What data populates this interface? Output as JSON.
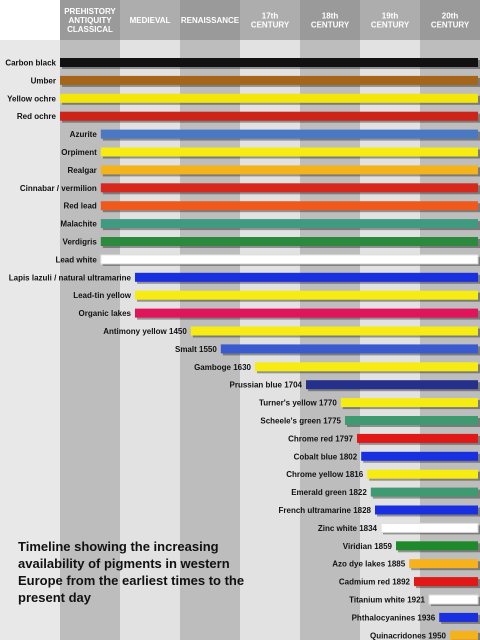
{
  "chart_data": {
    "type": "bar",
    "subtype": "timeline",
    "title": "Timeline showing the increasing availability of pigments in western Europe from the earliest times to the present day",
    "periods": [
      {
        "lines": [
          "PREHISTORY",
          "ANTIQUITY",
          "CLASSICAL"
        ],
        "band": "dark"
      },
      {
        "lines": [
          "MEDIEVAL"
        ],
        "band": "light"
      },
      {
        "lines": [
          "RENAISSANCE"
        ],
        "band": "dark"
      },
      {
        "lines": [
          "17th",
          "CENTURY"
        ],
        "band": "light"
      },
      {
        "lines": [
          "18th",
          "CENTURY"
        ],
        "band": "dark"
      },
      {
        "lines": [
          "19th",
          "CENTURY"
        ],
        "band": "light"
      },
      {
        "lines": [
          "20th",
          "CENTURY"
        ],
        "band": "dark"
      }
    ],
    "timeline_end": 7,
    "note": "start values are in period units: 0 = start of Prehistory/Antiquity/Classical, 1 = start of Medieval, 2 = Renaissance, 3 = 17th century, 4 = 18th, 5 = 19th, 6 = 20th, 7 = present",
    "series": [
      {
        "label": "Carbon black",
        "start": 0.0,
        "color": "#111111"
      },
      {
        "label": "Umber",
        "start": 0.0,
        "color": "#a5661a"
      },
      {
        "label": "Yellow ochre",
        "start": 0.0,
        "color": "#f5e60a"
      },
      {
        "label": "Red ochre",
        "start": 0.0,
        "color": "#cc2418"
      },
      {
        "label": "Azurite",
        "start": 0.68,
        "color": "#4a78c2"
      },
      {
        "label": "Orpiment",
        "start": 0.68,
        "color": "#f7ec12"
      },
      {
        "label": "Realgar",
        "start": 0.68,
        "color": "#f3b31a"
      },
      {
        "label": "Cinnabar / vermilion",
        "start": 0.68,
        "color": "#d6281c"
      },
      {
        "label": "Red lead",
        "start": 0.68,
        "color": "#ef5a1c"
      },
      {
        "label": "Malachite",
        "start": 0.68,
        "color": "#3f9a80"
      },
      {
        "label": "Verdigris",
        "start": 0.68,
        "color": "#2c8a3e"
      },
      {
        "label": "Lead white",
        "start": 0.68,
        "color": "#ffffff"
      },
      {
        "label": "Lapis lazuli / natural ultramarine",
        "start": 1.25,
        "color": "#1a2fe0"
      },
      {
        "label": "Lead-tin yellow",
        "start": 1.25,
        "color": "#f7ec12"
      },
      {
        "label": "Organic lakes",
        "start": 1.25,
        "color": "#e0145a"
      },
      {
        "label": "Antimony yellow 1450",
        "start": 2.18,
        "color": "#f7ec12"
      },
      {
        "label": "Smalt 1550",
        "start": 2.68,
        "color": "#3a5ad0"
      },
      {
        "label": "Gamboge 1630",
        "start": 3.25,
        "color": "#f7ec12"
      },
      {
        "label": "Prussian blue 1704",
        "start": 4.1,
        "color": "#24308a"
      },
      {
        "label": "Turner's yellow 1770",
        "start": 4.68,
        "color": "#f7ec12"
      },
      {
        "label": "Scheele's green 1775",
        "start": 4.75,
        "color": "#3f9a72"
      },
      {
        "label": "Chrome red 1797",
        "start": 4.95,
        "color": "#e01818"
      },
      {
        "label": "Cobalt blue 1802",
        "start": 5.02,
        "color": "#1a2fe0"
      },
      {
        "label": "Chrome yellow 1816",
        "start": 5.12,
        "color": "#f7ec12"
      },
      {
        "label": "Emerald green 1822",
        "start": 5.18,
        "color": "#3f9a72"
      },
      {
        "label": "French ultramarine 1828",
        "start": 5.25,
        "color": "#1a2fe0"
      },
      {
        "label": "Zinc white 1834",
        "start": 5.35,
        "color": "#ffffff"
      },
      {
        "label": "Viridian 1859",
        "start": 5.6,
        "color": "#1f8a2c"
      },
      {
        "label": "Azo dye lakes 1885",
        "start": 5.82,
        "color": "#f5b21c"
      },
      {
        "label": "Cadmium red 1892",
        "start": 5.9,
        "color": "#e01818"
      },
      {
        "label": "Titanium white 1921",
        "start": 6.15,
        "color": "#ffffff"
      },
      {
        "label": "Phthalocyanines 1936",
        "start": 6.32,
        "color": "#1a2fe0"
      },
      {
        "label": "Quinacridones 1950",
        "start": 6.5,
        "color": "#f5b21c"
      }
    ]
  }
}
